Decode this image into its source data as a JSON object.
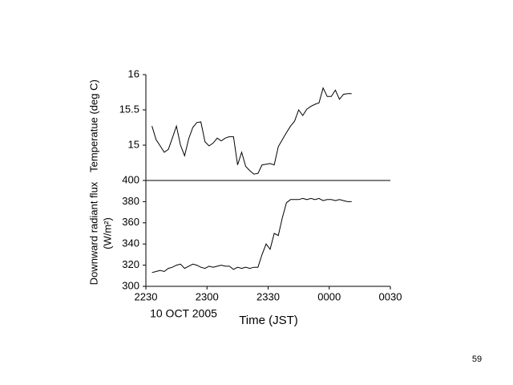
{
  "chart_data": [
    {
      "type": "line",
      "y_label": "Temperatue (deg C)",
      "ylim": [
        14.5,
        16
      ],
      "yticks": [
        15,
        15.5,
        16
      ],
      "xlim": [
        1350,
        1470
      ],
      "color": "#000000",
      "x": [
        1353,
        1355,
        1357,
        1359,
        1361,
        1363,
        1365,
        1367,
        1369,
        1371,
        1373,
        1375,
        1377,
        1379,
        1381,
        1383,
        1385,
        1387,
        1389,
        1391,
        1393,
        1395,
        1397,
        1399,
        1401,
        1403,
        1405,
        1407,
        1409,
        1411,
        1413,
        1415,
        1417,
        1419,
        1421,
        1423,
        1425,
        1427,
        1429,
        1431,
        1433,
        1435,
        1437,
        1439,
        1441,
        1443,
        1445,
        1447,
        1449,
        1451
      ],
      "values": [
        15.27,
        15.08,
        14.99,
        14.9,
        14.94,
        15.1,
        15.27,
        15.0,
        14.85,
        15.09,
        15.25,
        15.32,
        15.33,
        15.05,
        14.99,
        15.03,
        15.1,
        15.06,
        15.1,
        15.12,
        15.12,
        14.72,
        14.9,
        14.7,
        14.64,
        14.59,
        14.6,
        14.72,
        14.73,
        14.74,
        14.72,
        14.98,
        15.08,
        15.18,
        15.27,
        15.34,
        15.5,
        15.42,
        15.51,
        15.55,
        15.58,
        15.6,
        15.81,
        15.69,
        15.69,
        15.78,
        15.65,
        15.72,
        15.73,
        15.73
      ]
    },
    {
      "type": "line",
      "y_label": [
        "Downward radiant flux",
        "(W/m²)"
      ],
      "ylim": [
        300,
        400
      ],
      "yticks": [
        300,
        320,
        340,
        360,
        380,
        400
      ],
      "xlim": [
        1350,
        1470
      ],
      "xticks": [
        {
          "value": 1350,
          "label": "2230"
        },
        {
          "value": 1380,
          "label": "2300"
        },
        {
          "value": 1410,
          "label": "2330"
        },
        {
          "value": 1440,
          "label": "0000"
        },
        {
          "value": 1470,
          "label": "0030"
        }
      ],
      "x_label": "Time (JST)",
      "annotation": "10 OCT 2005",
      "color": "#000000",
      "x": [
        1353,
        1355,
        1357,
        1359,
        1361,
        1363,
        1365,
        1367,
        1369,
        1371,
        1373,
        1375,
        1377,
        1379,
        1381,
        1383,
        1385,
        1387,
        1389,
        1391,
        1393,
        1395,
        1397,
        1399,
        1401,
        1403,
        1405,
        1407,
        1409,
        1411,
        1413,
        1415,
        1417,
        1419,
        1421,
        1423,
        1425,
        1427,
        1429,
        1431,
        1433,
        1435,
        1437,
        1439,
        1441,
        1443,
        1445,
        1447,
        1449,
        1451
      ],
      "values": [
        313,
        314,
        315,
        314,
        317,
        318,
        320,
        321,
        317,
        319,
        321,
        320,
        318,
        317,
        319,
        318,
        319,
        320,
        319,
        319,
        316,
        318,
        317,
        318,
        317,
        318,
        318,
        330,
        340,
        335,
        350,
        348,
        365,
        379,
        382,
        382,
        382,
        383,
        382,
        383,
        382,
        383,
        381,
        382,
        382,
        381,
        382,
        381,
        380,
        380
      ]
    }
  ],
  "page_number": "59"
}
